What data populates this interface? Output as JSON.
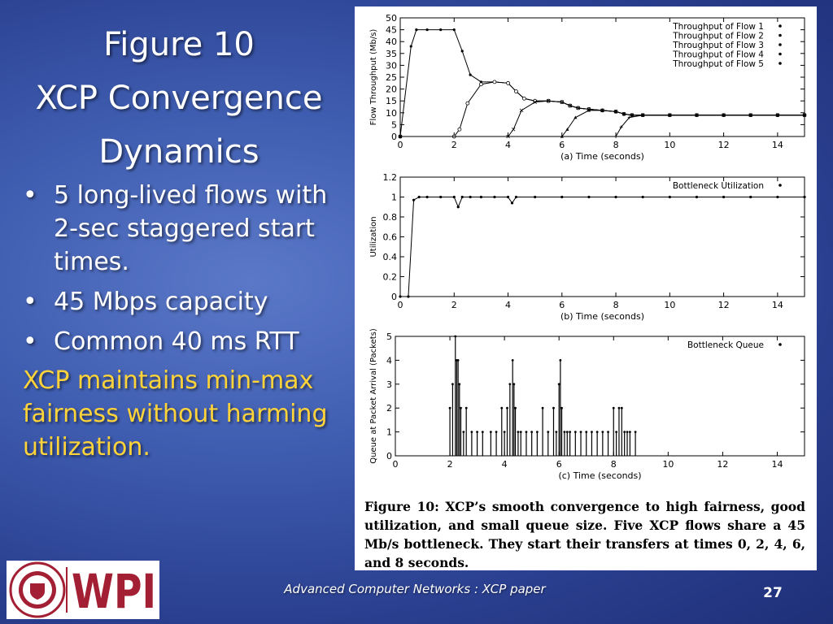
{
  "slide": {
    "title_lines": [
      "Figure 10",
      "XCP Convergence",
      "Dynamics"
    ],
    "bullets": [
      "5 long-lived flows with 2-sec staggered start times.",
      "45 Mbps capacity",
      "Common 40 ms RTT"
    ],
    "highlight": "XCP maintains min-max fairness without harming utilization.",
    "footer": "Advanced Computer Networks :  XCP paper",
    "page_number": "27",
    "highlight_color": "#ffd33a",
    "logo": {
      "text": "WPI",
      "seal_text": "WORCESTER POLYTECHNIC INSTITUTE 1865",
      "color": "#a31f34"
    }
  },
  "figure": {
    "caption": "Figure 10: XCP’s smooth convergence to high fairness, good utilization, and small queue size. Five XCP flows share a 45 Mb/s bottleneck. They start their transfers at times 0, 2, 4, 6, and 8 seconds."
  },
  "chart_data": [
    {
      "type": "scatter",
      "xlabel": "(a) Time (seconds)",
      "ylabel": "Flow Throughput (Mb/s)",
      "xlim": [
        0,
        15
      ],
      "ylim": [
        0,
        50
      ],
      "x_ticks": [
        0,
        2,
        4,
        6,
        8,
        10,
        12,
        14
      ],
      "y_ticks": [
        0,
        5,
        10,
        15,
        20,
        25,
        30,
        35,
        40,
        45,
        50
      ],
      "legend_position": "top-right",
      "series": [
        {
          "name": "Throughput of Flow 1",
          "x": [
            0,
            0.4,
            0.6,
            1,
            1.5,
            2,
            2.3,
            2.6,
            3,
            3.5,
            4,
            4.3,
            4.6,
            5,
            5.5,
            6,
            6.3,
            6.6,
            7,
            7.5,
            8,
            8.3,
            8.6,
            9,
            10,
            11,
            12,
            13,
            14,
            15
          ],
          "y": [
            0,
            38,
            45,
            45,
            45,
            45,
            36,
            26,
            23,
            23,
            22.5,
            19,
            16,
            15,
            15,
            14.5,
            13,
            12,
            11.5,
            11,
            10.5,
            9.5,
            9,
            9,
            9,
            9,
            9,
            9,
            9,
            9
          ]
        },
        {
          "name": "Throughput of Flow 2",
          "x": [
            0,
            2,
            2.2,
            2.5,
            3,
            3.5,
            4,
            4.3,
            4.6,
            5,
            5.5,
            6,
            6.3,
            6.6,
            7,
            7.5,
            8,
            8.3,
            8.6,
            9,
            10,
            11,
            12,
            13,
            14,
            15
          ],
          "y": [
            0,
            0,
            3,
            14,
            22,
            23,
            22.5,
            19,
            16,
            15,
            15,
            14.5,
            13,
            12,
            11.5,
            11,
            10.5,
            9.5,
            9,
            9,
            9,
            9,
            9,
            9,
            9,
            9
          ]
        },
        {
          "name": "Throughput of Flow 3",
          "x": [
            0,
            4,
            4.2,
            4.5,
            5,
            5.5,
            6,
            6.3,
            6.6,
            7,
            7.5,
            8,
            8.3,
            8.6,
            9,
            10,
            11,
            12,
            13,
            14,
            15
          ],
          "y": [
            0,
            0,
            3,
            11,
            14.5,
            15,
            14.5,
            13,
            12,
            11.5,
            11,
            10.5,
            9.5,
            9,
            9,
            9,
            9,
            9,
            9,
            9,
            9
          ]
        },
        {
          "name": "Throughput of Flow 4",
          "x": [
            0,
            6,
            6.2,
            6.5,
            7,
            7.5,
            8,
            8.3,
            8.6,
            9,
            10,
            11,
            12,
            13,
            14,
            15
          ],
          "y": [
            0,
            0,
            3,
            8,
            11,
            11,
            10.5,
            9.5,
            9,
            9,
            9,
            9,
            9,
            9,
            9,
            9
          ]
        },
        {
          "name": "Throughput of Flow 5",
          "x": [
            0,
            8,
            8.2,
            8.5,
            9,
            10,
            11,
            12,
            13,
            14,
            15
          ],
          "y": [
            0,
            0,
            4,
            8,
            9,
            9,
            9,
            9,
            9,
            9,
            9
          ]
        }
      ]
    },
    {
      "type": "scatter",
      "xlabel": "(b) Time (seconds)",
      "ylabel": "Utilization",
      "xlim": [
        0,
        15
      ],
      "ylim": [
        0,
        1.2
      ],
      "x_ticks": [
        0,
        2,
        4,
        6,
        8,
        10,
        12,
        14
      ],
      "y_ticks": [
        0,
        0.2,
        0.4,
        0.6,
        0.8,
        1,
        1.2
      ],
      "legend_position": "top-right",
      "series": [
        {
          "name": "Bottleneck Utilization",
          "x": [
            0,
            0.3,
            0.5,
            0.7,
            1,
            1.5,
            2,
            2.15,
            2.3,
            2.6,
            3,
            3.5,
            4,
            4.15,
            4.3,
            5,
            6,
            7,
            8,
            9,
            10,
            11,
            12,
            13,
            14,
            15
          ],
          "y": [
            0,
            0,
            0.97,
            1,
            1,
            1,
            1,
            0.9,
            1,
            1,
            1,
            1,
            1,
            0.94,
            1,
            1,
            1,
            1,
            1,
            1,
            1,
            1,
            1,
            1,
            1,
            1
          ]
        }
      ]
    },
    {
      "type": "bar",
      "xlabel": "(c) Time (seconds)",
      "ylabel": "Queue at Packet Arrival (Packets)",
      "xlim": [
        0,
        15
      ],
      "ylim": [
        0,
        5
      ],
      "x_ticks": [
        0,
        2,
        4,
        6,
        8,
        10,
        12,
        14
      ],
      "y_ticks": [
        0,
        1,
        2,
        3,
        4,
        5
      ],
      "legend_position": "top-right",
      "series": [
        {
          "name": "Bottleneck Queue",
          "x": [
            2.0,
            2.1,
            2.2,
            2.25,
            2.3,
            2.35,
            2.4,
            2.5,
            2.6,
            2.8,
            3.0,
            3.2,
            3.5,
            3.7,
            3.9,
            4.0,
            4.1,
            4.2,
            4.3,
            4.35,
            4.4,
            4.5,
            4.6,
            4.8,
            5.0,
            5.2,
            5.4,
            5.6,
            5.8,
            5.9,
            6.0,
            6.05,
            6.1,
            6.2,
            6.3,
            6.4,
            6.6,
            6.8,
            7.0,
            7.2,
            7.4,
            7.6,
            7.8,
            8.0,
            8.1,
            8.2,
            8.3,
            8.4,
            8.5,
            8.6,
            8.8
          ],
          "values": [
            2,
            3,
            5,
            4,
            4,
            3,
            2,
            1,
            2,
            1,
            1,
            1,
            1,
            1,
            2,
            1,
            2,
            3,
            4,
            3,
            2,
            1,
            1,
            1,
            1,
            1,
            2,
            1,
            2,
            1,
            3,
            4,
            2,
            1,
            1,
            1,
            1,
            1,
            1,
            1,
            1,
            1,
            1,
            2,
            1,
            2,
            2,
            1,
            1,
            1,
            1
          ]
        }
      ]
    }
  ]
}
